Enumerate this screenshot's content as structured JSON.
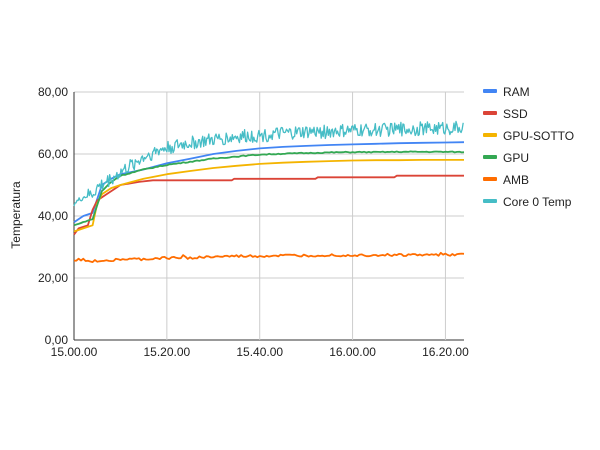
{
  "chart_data": {
    "type": "line",
    "title": "",
    "xlabel": "",
    "ylabel": "Temperatura",
    "x_ticks": [
      "15.00.00",
      "15.20.00",
      "15.40.00",
      "16.00.00",
      "16.20.00"
    ],
    "y_ticks": [
      "0,00",
      "20,00",
      "40,00",
      "60,00",
      "80,00"
    ],
    "xlim_minutes": [
      0,
      84
    ],
    "ylim": [
      0,
      80
    ],
    "grid": true,
    "legend_position": "right",
    "series": [
      {
        "name": "RAM",
        "color": "#4285f4",
        "points": [
          [
            0,
            38
          ],
          [
            2,
            40
          ],
          [
            4,
            41
          ],
          [
            6,
            50
          ],
          [
            8,
            52
          ],
          [
            10,
            53.5
          ],
          [
            15,
            55
          ],
          [
            20,
            57
          ],
          [
            25,
            58.5
          ],
          [
            30,
            60
          ],
          [
            35,
            61
          ],
          [
            40,
            61.8
          ],
          [
            45,
            62.3
          ],
          [
            50,
            62.6
          ],
          [
            55,
            62.9
          ],
          [
            60,
            63.1
          ],
          [
            65,
            63.3
          ],
          [
            70,
            63.5
          ],
          [
            75,
            63.6
          ],
          [
            80,
            63.7
          ],
          [
            84,
            63.8
          ]
        ]
      },
      {
        "name": "SSD",
        "color": "#db4437",
        "points": [
          [
            0,
            34
          ],
          [
            1,
            36
          ],
          [
            3,
            37
          ],
          [
            4,
            42
          ],
          [
            5,
            45
          ],
          [
            7,
            47
          ],
          [
            9,
            49
          ],
          [
            10,
            50
          ],
          [
            12,
            50.5
          ],
          [
            14,
            51
          ],
          [
            17,
            51.5
          ],
          [
            24,
            51.5
          ],
          [
            34,
            51.5
          ],
          [
            34.5,
            52
          ],
          [
            52,
            52
          ],
          [
            52.5,
            52.5
          ],
          [
            69,
            52.5
          ],
          [
            69.5,
            53
          ],
          [
            84,
            53
          ]
        ]
      },
      {
        "name": "GPU-SOTTO",
        "color": "#f4b400",
        "points": [
          [
            0,
            35
          ],
          [
            2,
            36
          ],
          [
            4,
            37
          ],
          [
            5,
            44
          ],
          [
            6,
            47
          ],
          [
            8,
            49
          ],
          [
            10,
            50
          ],
          [
            15,
            52
          ],
          [
            20,
            53.5
          ],
          [
            25,
            54.5
          ],
          [
            30,
            55.5
          ],
          [
            35,
            56.2
          ],
          [
            40,
            56.8
          ],
          [
            45,
            57.2
          ],
          [
            50,
            57.5
          ],
          [
            55,
            57.7
          ],
          [
            60,
            57.9
          ],
          [
            65,
            58
          ],
          [
            70,
            58
          ],
          [
            75,
            58.1
          ],
          [
            80,
            58.1
          ],
          [
            84,
            58.1
          ]
        ]
      },
      {
        "name": "GPU",
        "color": "#34a853",
        "points": [
          [
            0,
            37
          ],
          [
            2,
            38
          ],
          [
            4,
            39
          ],
          [
            6,
            48
          ],
          [
            8,
            51
          ],
          [
            10,
            53
          ],
          [
            15,
            55
          ],
          [
            20,
            56.5
          ],
          [
            25,
            57.5
          ],
          [
            30,
            58.5
          ],
          [
            35,
            59.2
          ],
          [
            40,
            59.8
          ],
          [
            45,
            60.1
          ],
          [
            50,
            60.3
          ],
          [
            55,
            60.5
          ],
          [
            60,
            60.6
          ],
          [
            65,
            60.6
          ],
          [
            70,
            60.7
          ],
          [
            75,
            60.7
          ],
          [
            80,
            60.7
          ],
          [
            84,
            60.6
          ]
        ]
      },
      {
        "name": "AMB",
        "color": "#ff6d00",
        "points": [
          [
            0,
            25.5
          ],
          [
            5,
            25.5
          ],
          [
            10,
            26
          ],
          [
            15,
            26
          ],
          [
            20,
            26.5
          ],
          [
            25,
            26.5
          ],
          [
            30,
            26.8
          ],
          [
            35,
            27
          ],
          [
            40,
            27
          ],
          [
            45,
            27.2
          ],
          [
            50,
            27.2
          ],
          [
            55,
            27.4
          ],
          [
            60,
            27.3
          ],
          [
            65,
            27.4
          ],
          [
            70,
            27.4
          ],
          [
            75,
            27.4
          ],
          [
            80,
            27.4
          ],
          [
            84,
            27.5
          ]
        ]
      },
      {
        "name": "Core 0 Temp",
        "color": "#46bdc6",
        "points": [
          [
            0,
            44
          ],
          [
            2,
            46
          ],
          [
            4,
            47
          ],
          [
            5,
            49
          ],
          [
            8,
            52
          ],
          [
            10,
            54
          ],
          [
            12,
            56
          ],
          [
            15,
            59
          ],
          [
            18,
            61
          ],
          [
            20,
            62
          ],
          [
            25,
            63.5
          ],
          [
            30,
            64.5
          ],
          [
            35,
            65.5
          ],
          [
            40,
            66
          ],
          [
            45,
            66.5
          ],
          [
            50,
            67
          ],
          [
            55,
            67.2
          ],
          [
            60,
            67.5
          ],
          [
            65,
            67.8
          ],
          [
            70,
            68
          ],
          [
            75,
            68.2
          ],
          [
            80,
            68.4
          ],
          [
            84,
            68.5
          ]
        ]
      }
    ]
  }
}
